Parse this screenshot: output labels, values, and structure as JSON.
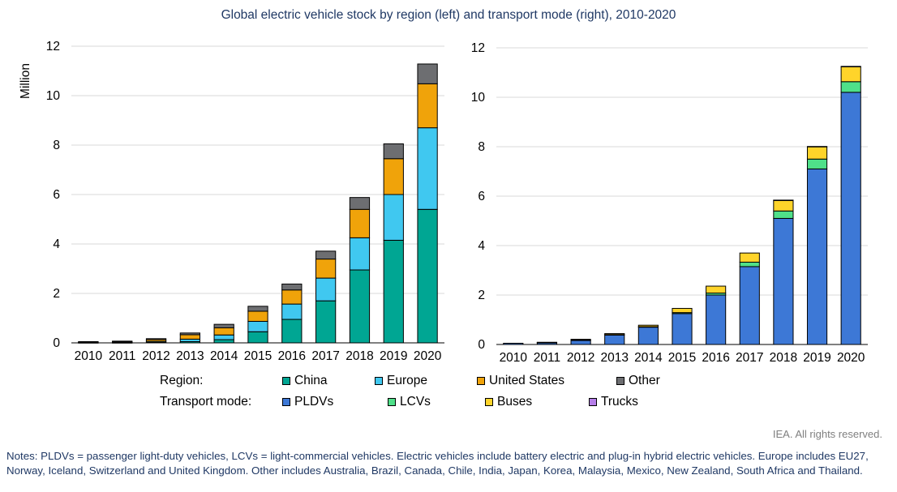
{
  "title": "Global electric vehicle stock by region (left) and transport mode (right), 2010-2020",
  "chart_data": [
    {
      "type": "bar",
      "stacked": true,
      "categories": [
        "2010",
        "2011",
        "2012",
        "2013",
        "2014",
        "2015",
        "2016",
        "2017",
        "2018",
        "2019",
        "2020"
      ],
      "ylabel": "Million",
      "ylim": [
        0,
        12
      ],
      "yticks": [
        0,
        2,
        4,
        6,
        8,
        10,
        12
      ],
      "grid": true,
      "series": [
        {
          "name": "China",
          "color": "#00a693",
          "values": [
            0.01,
            0.01,
            0.02,
            0.05,
            0.13,
            0.45,
            0.95,
            1.7,
            2.95,
            4.15,
            5.4
          ]
        },
        {
          "name": "Europe",
          "color": "#40c8f0",
          "values": [
            0.01,
            0.02,
            0.04,
            0.1,
            0.19,
            0.42,
            0.62,
            0.92,
            1.3,
            1.85,
            3.3
          ]
        },
        {
          "name": "United States",
          "color": "#f0a30a",
          "values": [
            0.01,
            0.02,
            0.07,
            0.18,
            0.29,
            0.41,
            0.57,
            0.77,
            1.15,
            1.45,
            1.78
          ]
        },
        {
          "name": "Other",
          "color": "#6d6e71",
          "values": [
            0.02,
            0.02,
            0.04,
            0.07,
            0.14,
            0.2,
            0.24,
            0.32,
            0.48,
            0.6,
            0.8
          ]
        }
      ]
    },
    {
      "type": "bar",
      "stacked": true,
      "categories": [
        "2010",
        "2011",
        "2012",
        "2013",
        "2014",
        "2015",
        "2016",
        "2017",
        "2018",
        "2019",
        "2020"
      ],
      "ylim": [
        0,
        12
      ],
      "yticks": [
        0,
        2,
        4,
        6,
        8,
        10,
        12
      ],
      "grid": true,
      "series": [
        {
          "name": "PLDVs",
          "color": "#3d78d6",
          "values": [
            0.05,
            0.07,
            0.17,
            0.38,
            0.7,
            1.25,
            2.0,
            3.15,
            5.1,
            7.1,
            10.2
          ]
        },
        {
          "name": "LCVs",
          "color": "#4fe089",
          "values": [
            0.0,
            0.01,
            0.01,
            0.02,
            0.02,
            0.04,
            0.08,
            0.18,
            0.3,
            0.4,
            0.43
          ]
        },
        {
          "name": "Buses",
          "color": "#ffd42a",
          "values": [
            0.0,
            0.01,
            0.03,
            0.04,
            0.06,
            0.17,
            0.28,
            0.37,
            0.43,
            0.5,
            0.6
          ]
        },
        {
          "name": "Trucks",
          "color": "#b57ee8",
          "values": [
            0.0,
            0.0,
            0.0,
            0.0,
            0.0,
            0.0,
            0.0,
            0.0,
            0.01,
            0.01,
            0.02
          ]
        }
      ]
    }
  ],
  "legend": {
    "region_label": "Region:",
    "mode_label": "Transport mode:"
  },
  "credit": "IEA. All rights reserved.",
  "notes": "Notes: PLDVs = passenger light-duty vehicles, LCVs = light-commercial vehicles. Electric vehicles include battery electric and plug-in hybrid electric vehicles. Europe includes EU27, Norway, Iceland, Switzerland and United Kingdom. Other includes Australia, Brazil, Canada, Chile, India, Japan, Korea, Malaysia, Mexico, New Zealand, South Africa and Thailand."
}
